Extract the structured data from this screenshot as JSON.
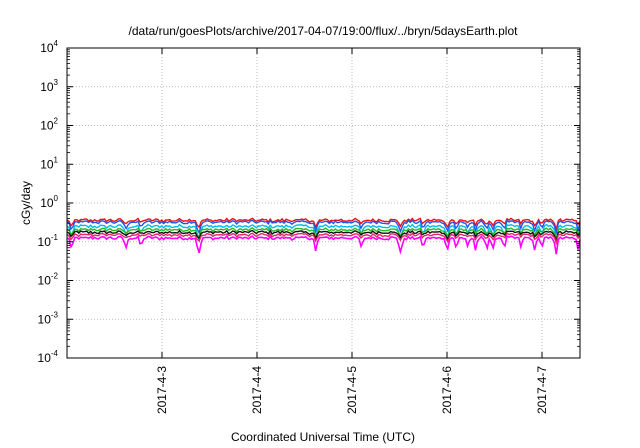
{
  "chart_data": {
    "type": "line",
    "title": "/data/run/goesPlots/archive/2017-04-07/19:00/flux/../bryn/5daysEarth.plot",
    "xlabel": "Coordinated Universal Time (UTC)",
    "ylabel": "cGy/day",
    "yscale": "log",
    "ylim": [
      0.0001,
      10000
    ],
    "xlim": [
      0,
      5.4
    ],
    "grid": true,
    "y_ticks": [
      {
        "base": "10",
        "exp": "4",
        "value": 10000
      },
      {
        "base": "10",
        "exp": "3",
        "value": 1000
      },
      {
        "base": "10",
        "exp": "2",
        "value": 100
      },
      {
        "base": "10",
        "exp": "1",
        "value": 10
      },
      {
        "base": "10",
        "exp": "0",
        "value": 1
      },
      {
        "base": "10",
        "exp": "-1",
        "value": 0.1
      },
      {
        "base": "10",
        "exp": "-2",
        "value": 0.01
      },
      {
        "base": "10",
        "exp": "-3",
        "value": 0.001
      },
      {
        "base": "10",
        "exp": "-4",
        "value": 0.0001
      }
    ],
    "x_ticks": [
      {
        "label": "2017-4-3",
        "value": 1
      },
      {
        "label": "2017-4-4",
        "value": 2
      },
      {
        "label": "2017-4-5",
        "value": 3
      },
      {
        "label": "2017-4-6",
        "value": 4
      },
      {
        "label": "2017-4-7",
        "value": 5
      }
    ],
    "series": [
      {
        "color": "#ee1111",
        "base": 0.36,
        "dip": 0.85
      },
      {
        "color": "#2255ee",
        "base": 0.32,
        "dip": 0.7
      },
      {
        "color": "#00bbee",
        "base": 0.25,
        "dip": 0.6
      },
      {
        "color": "#22bb22",
        "base": 0.205,
        "dip": 0.85
      },
      {
        "color": "#111111",
        "base": 0.175,
        "dip": 0.9
      },
      {
        "color": "#ee2266",
        "base": 0.15,
        "dip": 0.9
      },
      {
        "color": "#ff00ff",
        "base": 0.125,
        "dip": 0.55
      }
    ],
    "dips": [
      0.05,
      0.62,
      0.78,
      1.38,
      1.4,
      2.62,
      3.1,
      3.5,
      3.52,
      3.75,
      4.0,
      4.1,
      4.22,
      4.3,
      4.42,
      4.48,
      4.6,
      4.78,
      4.92,
      5.0,
      5.15,
      5.38
    ]
  }
}
